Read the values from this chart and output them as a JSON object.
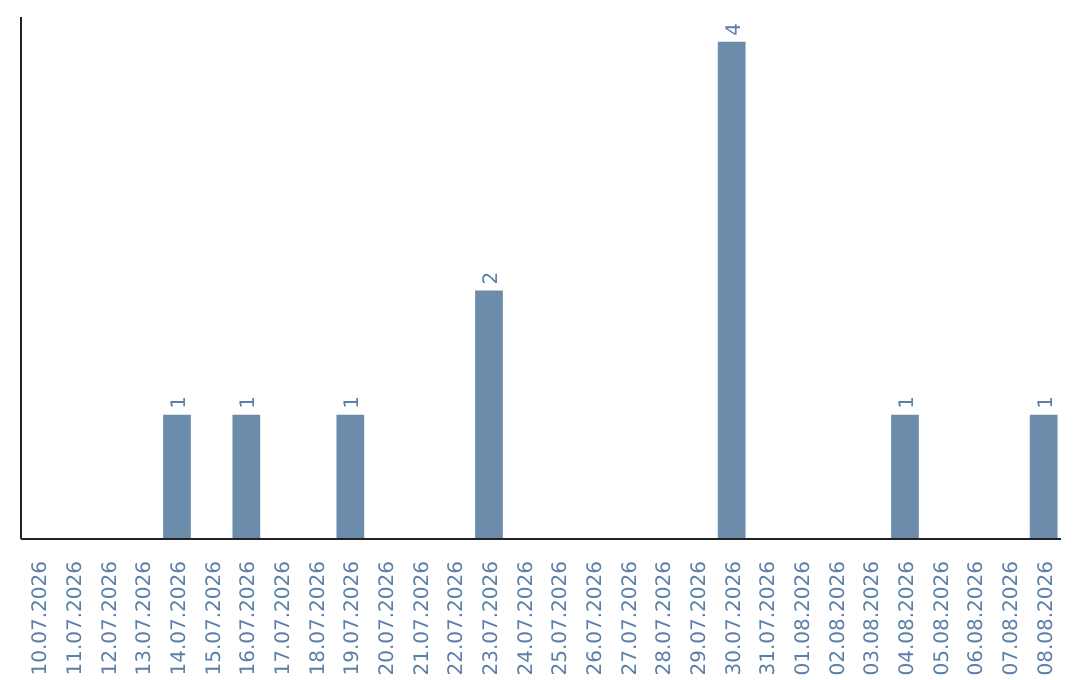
{
  "chart_data": {
    "type": "bar",
    "categories": [
      "10.07.2026",
      "11.07.2026",
      "12.07.2026",
      "13.07.2026",
      "14.07.2026",
      "15.07.2026",
      "16.07.2026",
      "17.07.2026",
      "18.07.2026",
      "19.07.2026",
      "20.07.2026",
      "21.07.2026",
      "22.07.2026",
      "23.07.2026",
      "24.07.2026",
      "25.07.2026",
      "26.07.2026",
      "27.07.2026",
      "28.07.2026",
      "29.07.2026",
      "30.07.2026",
      "31.07.2026",
      "01.08.2026",
      "02.08.2026",
      "03.08.2026",
      "04.08.2026",
      "05.08.2026",
      "06.08.2026",
      "07.08.2026",
      "08.08.2026"
    ],
    "values": [
      0,
      0,
      0,
      0,
      1,
      0,
      1,
      0,
      0,
      1,
      0,
      0,
      0,
      2,
      0,
      0,
      0,
      0,
      0,
      0,
      4,
      0,
      0,
      0,
      0,
      1,
      0,
      0,
      0,
      1
    ],
    "value_labels": [
      null,
      null,
      null,
      null,
      "1",
      null,
      "1",
      null,
      null,
      "1",
      null,
      null,
      null,
      "2",
      null,
      null,
      null,
      null,
      null,
      null,
      "4",
      null,
      null,
      null,
      null,
      "1",
      null,
      null,
      null,
      "1"
    ],
    "color": "#6b8cab",
    "ylim": [
      0,
      4.2
    ],
    "tick_labels": "x"
  }
}
